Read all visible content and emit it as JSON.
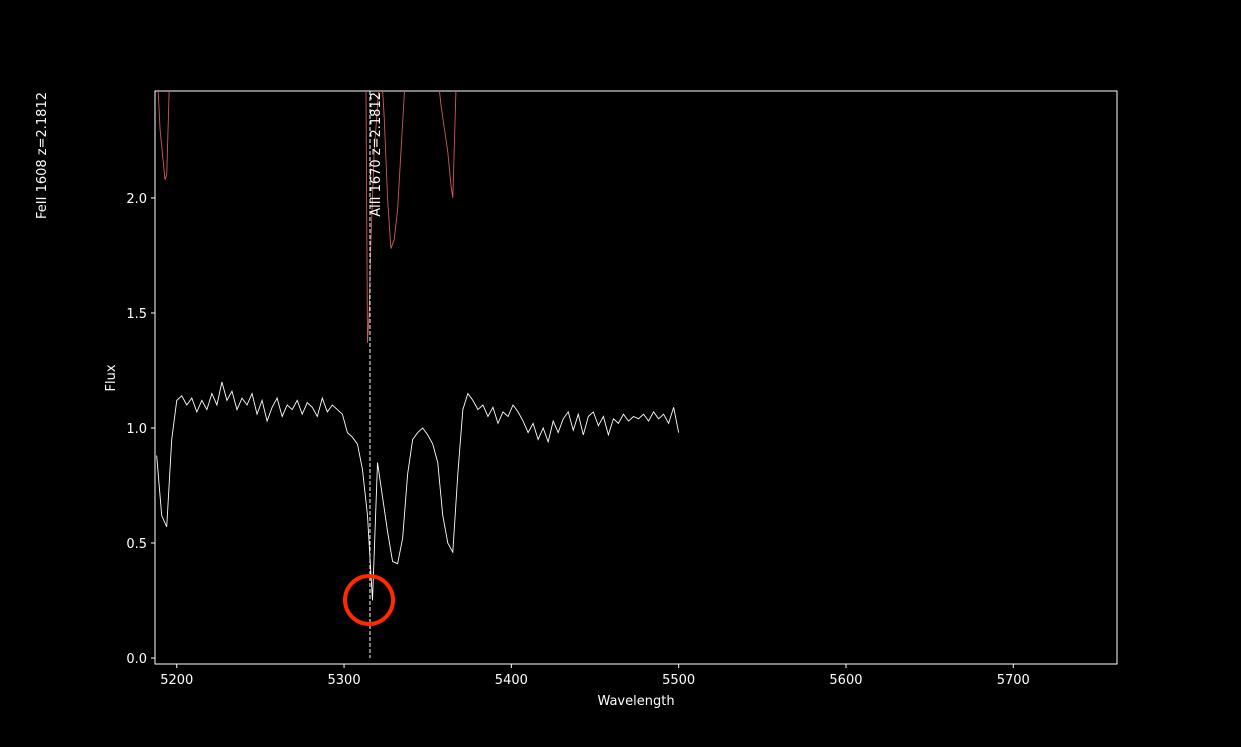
{
  "chart_data": {
    "type": "line",
    "xlabel": "Wavelength",
    "ylabel": "Flux",
    "xlim": [
      5187,
      5762
    ],
    "ylim": [
      -0.026,
      2.465
    ],
    "xticks": [
      5200,
      5300,
      5400,
      5500,
      5600,
      5700
    ],
    "yticks": [
      {
        "value": 0,
        "label": "0.0"
      },
      0.5,
      {
        "value": 1,
        "label": "1.0"
      },
      1.5,
      {
        "value": 2,
        "label": "2.0"
      }
    ],
    "series": [
      {
        "color": "#ffffff",
        "x": [
          5188,
          5191,
          5194,
          5197,
          5200,
          5203,
          5206,
          5209,
          5212,
          5215,
          5218,
          5221,
          5224,
          5227,
          5230,
          5233,
          5236,
          5239,
          5242,
          5245,
          5248,
          5251,
          5254,
          5257,
          5260,
          5263,
          5266,
          5269,
          5272,
          5275,
          5278,
          5281,
          5284,
          5287,
          5290,
          5293,
          5296,
          5299,
          5302,
          5305,
          5308,
          5311,
          5314,
          5317,
          5320,
          5323,
          5326,
          5329,
          5332,
          5335,
          5338,
          5341,
          5344,
          5347,
          5350,
          5353,
          5356,
          5359,
          5362,
          5365,
          5368,
          5371,
          5374,
          5377,
          5380,
          5383,
          5386,
          5389,
          5392,
          5395,
          5398,
          5401,
          5404,
          5407,
          5410,
          5413,
          5416,
          5419,
          5422,
          5425,
          5428,
          5431,
          5434,
          5437,
          5440,
          5443,
          5446,
          5449,
          5452,
          5455,
          5458,
          5461,
          5464,
          5467,
          5470,
          5473,
          5476,
          5479,
          5482,
          5485,
          5488,
          5491,
          5494,
          5497,
          5500
        ],
        "values": [
          0.88,
          0.62,
          0.57,
          0.95,
          1.12,
          1.14,
          1.1,
          1.13,
          1.07,
          1.12,
          1.08,
          1.15,
          1.1,
          1.2,
          1.12,
          1.16,
          1.08,
          1.13,
          1.1,
          1.15,
          1.06,
          1.12,
          1.03,
          1.09,
          1.13,
          1.05,
          1.1,
          1.08,
          1.12,
          1.06,
          1.11,
          1.09,
          1.05,
          1.13,
          1.07,
          1.1,
          1.08,
          1.06,
          0.98,
          0.96,
          0.93,
          0.82,
          0.62,
          0.25,
          0.85,
          0.7,
          0.55,
          0.42,
          0.41,
          0.52,
          0.8,
          0.95,
          0.98,
          1.0,
          0.97,
          0.93,
          0.85,
          0.62,
          0.5,
          0.46,
          0.8,
          1.08,
          1.15,
          1.12,
          1.08,
          1.1,
          1.05,
          1.09,
          1.02,
          1.07,
          1.05,
          1.1,
          1.07,
          1.03,
          0.98,
          1.02,
          0.95,
          1.0,
          0.94,
          1.03,
          0.98,
          1.04,
          1.07,
          0.99,
          1.06,
          0.97,
          1.05,
          1.07,
          1.01,
          1.05,
          0.97,
          1.04,
          1.02,
          1.06,
          1.03,
          1.05,
          1.04,
          1.06,
          1.03,
          1.07,
          1.04,
          1.06,
          1.02,
          1.09,
          0.98
        ]
      },
      {
        "color": "#cd5c5c",
        "x": [
          5188,
          5190,
          5192,
          5193,
          5194,
          5196,
          5313,
          5314,
          5315,
          5316,
          5318,
          5320,
          5322,
          5324,
          5326,
          5328,
          5330,
          5332,
          5334,
          5336,
          5338,
          5355,
          5358,
          5360,
          5362,
          5364,
          5365,
          5367,
          5370
        ],
        "values": [
          2.6,
          2.3,
          2.15,
          2.08,
          2.1,
          2.6,
          2.6,
          1.37,
          1.5,
          1.8,
          2.2,
          2.4,
          2.6,
          2.35,
          2.0,
          1.78,
          1.82,
          1.95,
          2.2,
          2.45,
          2.6,
          2.6,
          2.4,
          2.3,
          2.2,
          2.05,
          2.0,
          2.5,
          2.6
        ]
      }
    ],
    "line_markers": [
      {
        "x": 5315.5,
        "label": "AlII 1670  z=2.1812"
      },
      {
        "x": 5116,
        "label": "FeII 1608  z=2.1812"
      }
    ]
  }
}
